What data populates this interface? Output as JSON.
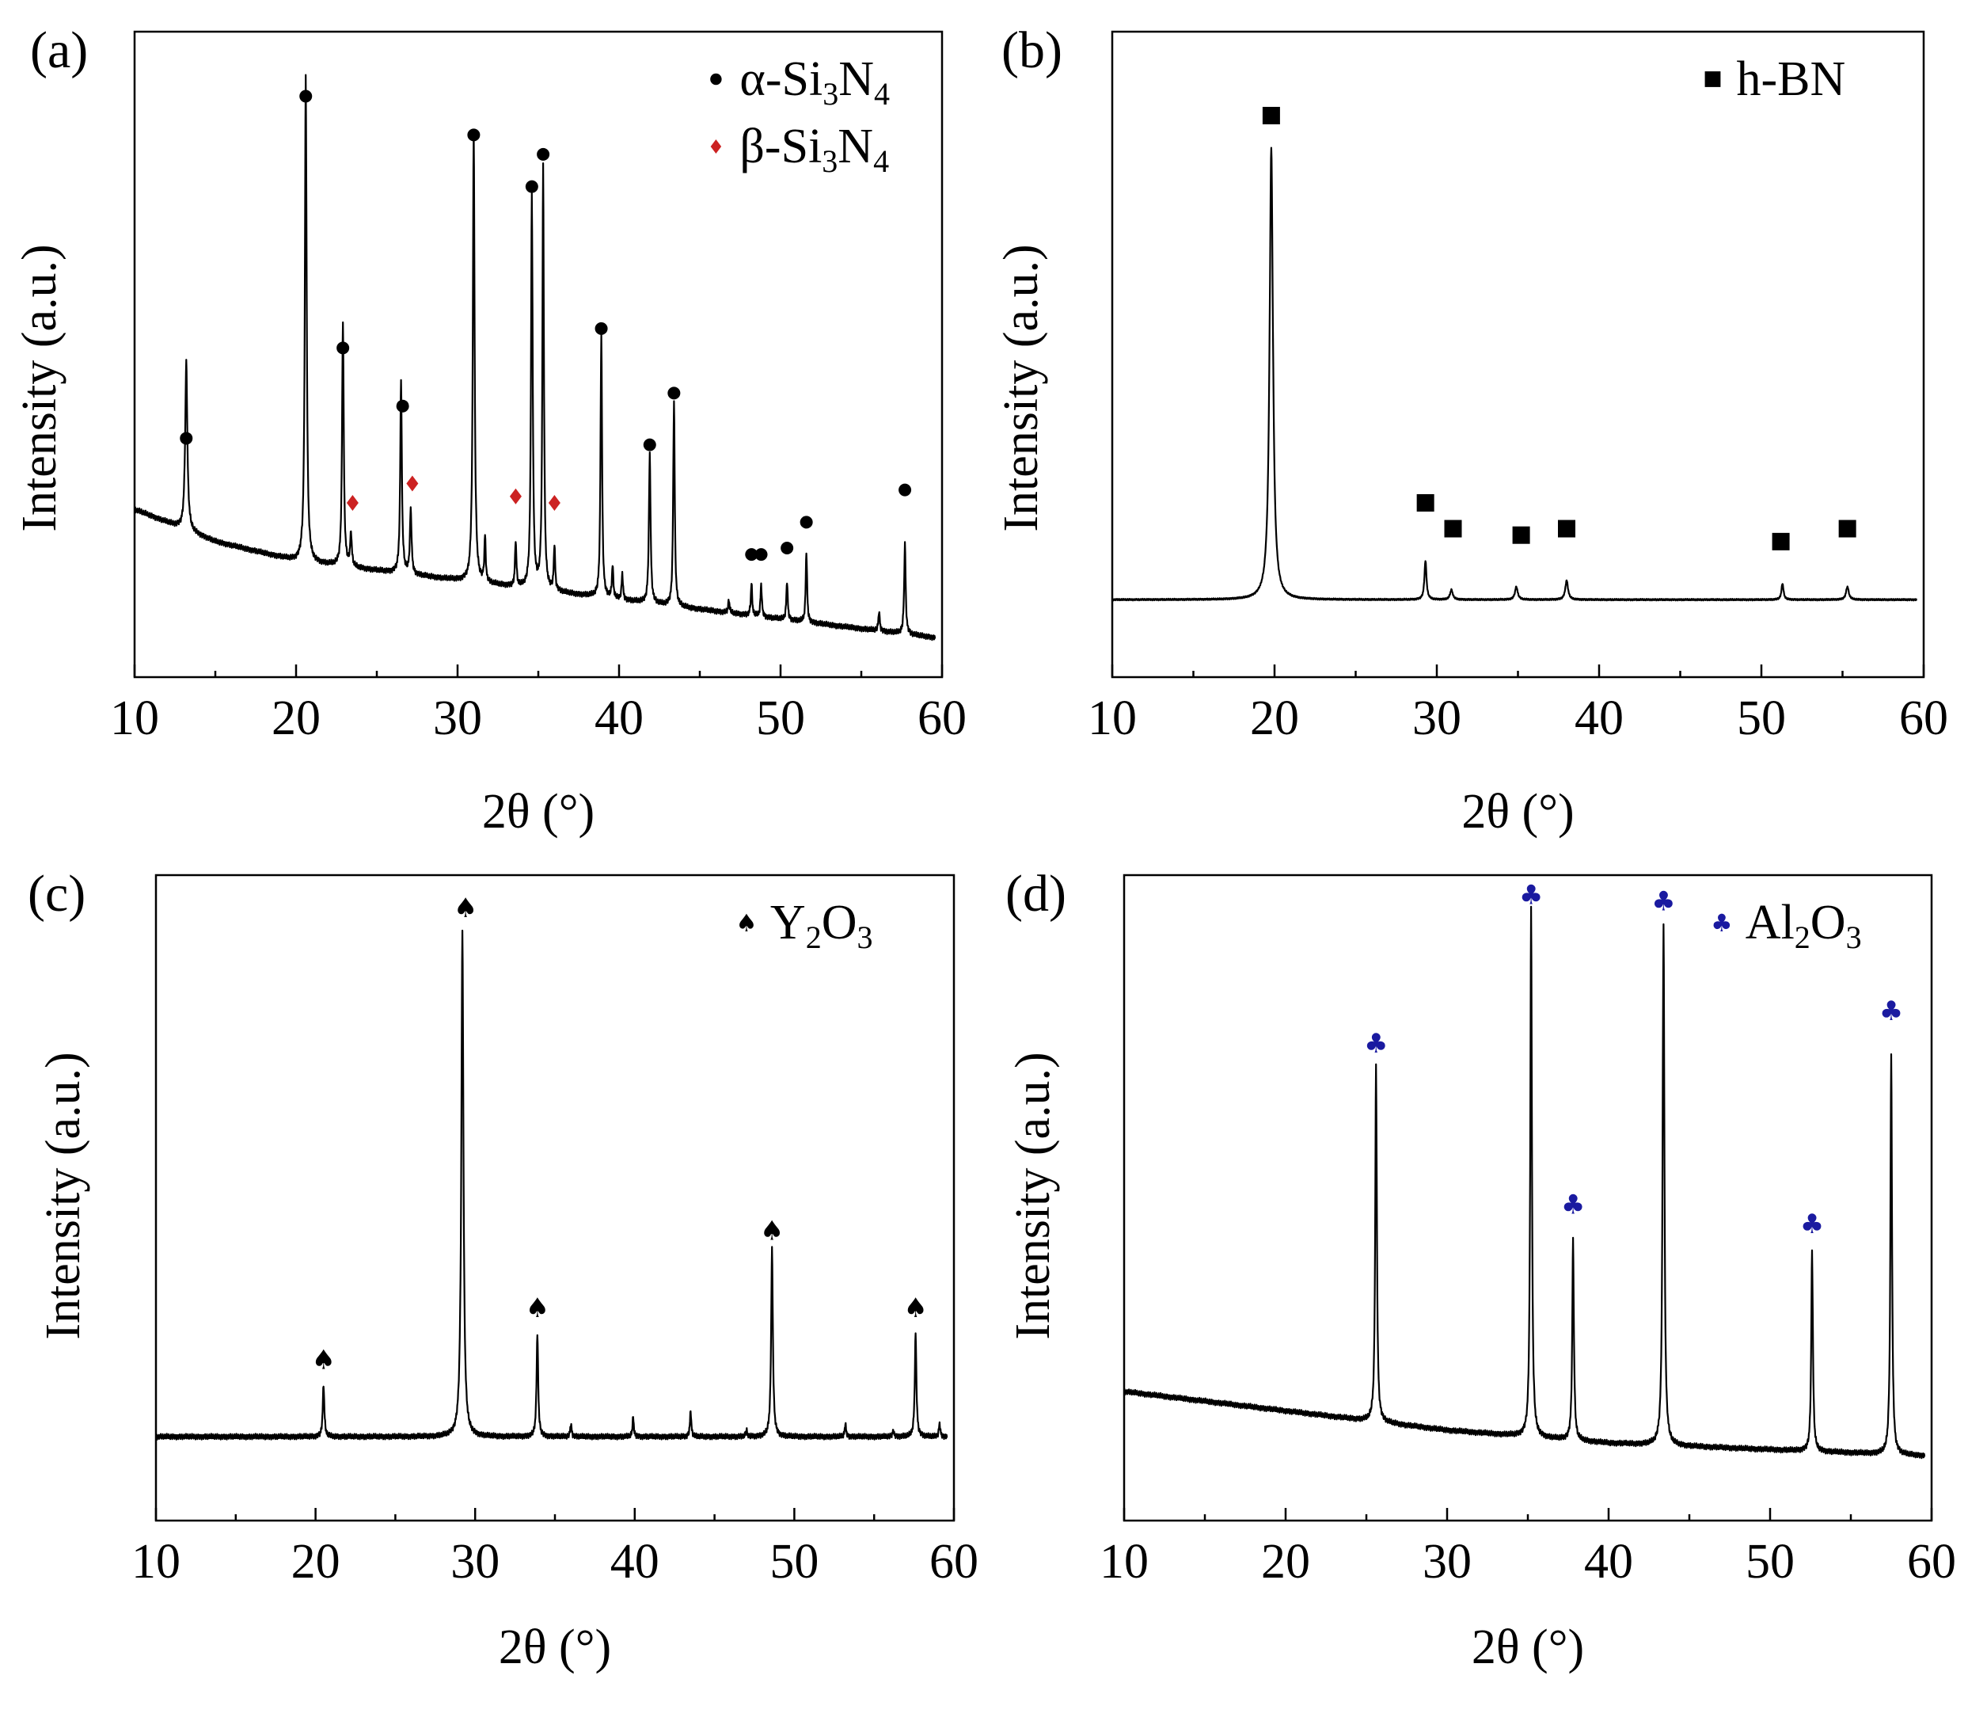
{
  "charts": [
    {
      "panel_label": "(a)",
      "type": "line",
      "xlabel": "2θ (°)",
      "ylabel": "Intensity (a.u.)",
      "xlim": [
        10,
        60
      ],
      "ylim": [
        0,
        100
      ],
      "x_ticks": [
        "10",
        "20",
        "30",
        "40",
        "50",
        "60"
      ],
      "legend_position": "top-right",
      "legend": [
        {
          "marker": "circle",
          "color": "#000000",
          "prefix": "α-Si",
          "sub1": "3",
          "mid": "N",
          "sub2": "4"
        },
        {
          "marker": "diamond",
          "color": "#cc2222",
          "prefix": "β-Si",
          "sub1": "3",
          "mid": "N",
          "sub2": "4"
        }
      ],
      "baseline": [
        [
          10,
          26
        ],
        [
          15,
          21
        ],
        [
          20,
          18
        ],
        [
          30,
          15
        ],
        [
          40,
          12
        ],
        [
          50,
          9
        ],
        [
          60,
          6
        ]
      ],
      "peaks": [
        {
          "x": 13.2,
          "h": 26,
          "w": 0.16
        },
        {
          "x": 20.6,
          "h": 75,
          "w": 0.13
        },
        {
          "x": 22.9,
          "h": 38,
          "w": 0.12
        },
        {
          "x": 23.4,
          "h": 5,
          "w": 0.12
        },
        {
          "x": 26.5,
          "h": 30,
          "w": 0.12
        },
        {
          "x": 27.1,
          "h": 10,
          "w": 0.12
        },
        {
          "x": 31.0,
          "h": 70,
          "w": 0.13
        },
        {
          "x": 31.7,
          "h": 7,
          "w": 0.1
        },
        {
          "x": 33.6,
          "h": 7,
          "w": 0.1
        },
        {
          "x": 34.6,
          "h": 61,
          "w": 0.12
        },
        {
          "x": 35.3,
          "h": 66,
          "w": 0.11
        },
        {
          "x": 36.0,
          "h": 7,
          "w": 0.1
        },
        {
          "x": 38.9,
          "h": 41,
          "w": 0.11
        },
        {
          "x": 39.6,
          "h": 5,
          "w": 0.1
        },
        {
          "x": 40.2,
          "h": 4,
          "w": 0.1
        },
        {
          "x": 41.9,
          "h": 23,
          "w": 0.12
        },
        {
          "x": 43.4,
          "h": 32,
          "w": 0.11
        },
        {
          "x": 46.8,
          "h": 2,
          "w": 0.1
        },
        {
          "x": 48.2,
          "h": 5,
          "w": 0.1
        },
        {
          "x": 48.8,
          "h": 5,
          "w": 0.1
        },
        {
          "x": 50.4,
          "h": 6,
          "w": 0.1
        },
        {
          "x": 51.6,
          "h": 11,
          "w": 0.1
        },
        {
          "x": 56.1,
          "h": 3,
          "w": 0.1
        },
        {
          "x": 57.7,
          "h": 14,
          "w": 0.11
        }
      ],
      "markers": [
        {
          "x": 13.2,
          "y": 37,
          "marker": "circle",
          "color": "#000000"
        },
        {
          "x": 20.6,
          "y": 90,
          "marker": "circle",
          "color": "#000000"
        },
        {
          "x": 22.9,
          "y": 51,
          "marker": "circle",
          "color": "#000000"
        },
        {
          "x": 23.5,
          "y": 27,
          "marker": "diamond",
          "color": "#cc2222"
        },
        {
          "x": 26.6,
          "y": 42,
          "marker": "circle",
          "color": "#000000"
        },
        {
          "x": 27.2,
          "y": 30,
          "marker": "diamond",
          "color": "#cc2222"
        },
        {
          "x": 31.0,
          "y": 84,
          "marker": "circle",
          "color": "#000000"
        },
        {
          "x": 33.6,
          "y": 28,
          "marker": "diamond",
          "color": "#cc2222"
        },
        {
          "x": 34.6,
          "y": 76,
          "marker": "circle",
          "color": "#000000"
        },
        {
          "x": 35.3,
          "y": 81,
          "marker": "circle",
          "color": "#000000"
        },
        {
          "x": 36.0,
          "y": 27,
          "marker": "diamond",
          "color": "#cc2222"
        },
        {
          "x": 38.9,
          "y": 54,
          "marker": "circle",
          "color": "#000000"
        },
        {
          "x": 41.9,
          "y": 36,
          "marker": "circle",
          "color": "#000000"
        },
        {
          "x": 43.4,
          "y": 44,
          "marker": "circle",
          "color": "#000000"
        },
        {
          "x": 48.2,
          "y": 19,
          "marker": "circle",
          "color": "#000000"
        },
        {
          "x": 48.8,
          "y": 19,
          "marker": "circle",
          "color": "#000000"
        },
        {
          "x": 50.4,
          "y": 20,
          "marker": "circle",
          "color": "#000000"
        },
        {
          "x": 51.6,
          "y": 24,
          "marker": "circle",
          "color": "#000000"
        },
        {
          "x": 57.7,
          "y": 29,
          "marker": "circle",
          "color": "#000000"
        }
      ]
    },
    {
      "panel_label": "(b)",
      "type": "line",
      "xlabel": "2θ (°)",
      "ylabel": "Intensity (a.u.)",
      "xlim": [
        10,
        60
      ],
      "ylim": [
        0,
        100
      ],
      "x_ticks": [
        "10",
        "20",
        "30",
        "40",
        "50",
        "60"
      ],
      "legend_position": "top-right",
      "legend": [
        {
          "marker": "square",
          "color": "#000000",
          "prefix": "h-BN",
          "sub1": "",
          "mid": "",
          "sub2": ""
        }
      ],
      "baseline": [
        [
          10,
          12
        ],
        [
          60,
          12
        ]
      ],
      "peaks": [
        {
          "x": 19.8,
          "h": 70,
          "w": 0.25
        },
        {
          "x": 29.3,
          "h": 6,
          "w": 0.15
        },
        {
          "x": 30.9,
          "h": 1.5,
          "w": 0.2
        },
        {
          "x": 34.9,
          "h": 2,
          "w": 0.2
        },
        {
          "x": 38.0,
          "h": 3,
          "w": 0.2
        },
        {
          "x": 51.3,
          "h": 2.5,
          "w": 0.15
        },
        {
          "x": 55.3,
          "h": 2,
          "w": 0.2
        }
      ],
      "markers": [
        {
          "x": 19.8,
          "y": 87,
          "marker": "square",
          "color": "#000000"
        },
        {
          "x": 29.3,
          "y": 27,
          "marker": "square",
          "color": "#000000"
        },
        {
          "x": 31.0,
          "y": 23,
          "marker": "square",
          "color": "#000000"
        },
        {
          "x": 35.2,
          "y": 22,
          "marker": "square",
          "color": "#000000"
        },
        {
          "x": 38.0,
          "y": 23,
          "marker": "square",
          "color": "#000000"
        },
        {
          "x": 51.2,
          "y": 21,
          "marker": "square",
          "color": "#000000"
        },
        {
          "x": 55.3,
          "y": 23,
          "marker": "square",
          "color": "#000000"
        }
      ]
    },
    {
      "panel_label": "(c)",
      "type": "line",
      "xlabel": "2θ (°)",
      "ylabel": "Intensity (a.u.)",
      "xlim": [
        10,
        60
      ],
      "ylim": [
        0,
        100
      ],
      "x_ticks": [
        "10",
        "20",
        "30",
        "40",
        "50",
        "60"
      ],
      "legend_position": "top-right",
      "legend": [
        {
          "marker": "spade",
          "color": "#000000",
          "prefix": "Y",
          "sub1": "2",
          "mid": "O",
          "sub2": "3"
        }
      ],
      "baseline": [
        [
          10,
          13
        ],
        [
          60,
          13
        ]
      ],
      "peaks": [
        {
          "x": 20.5,
          "h": 8,
          "w": 0.12
        },
        {
          "x": 29.2,
          "h": 78,
          "w": 0.16
        },
        {
          "x": 33.9,
          "h": 16,
          "w": 0.12
        },
        {
          "x": 36.0,
          "h": 2,
          "w": 0.1
        },
        {
          "x": 39.9,
          "h": 3,
          "w": 0.1
        },
        {
          "x": 43.5,
          "h": 4,
          "w": 0.1
        },
        {
          "x": 47.0,
          "h": 1,
          "w": 0.1
        },
        {
          "x": 48.6,
          "h": 29,
          "w": 0.13
        },
        {
          "x": 53.2,
          "h": 2,
          "w": 0.1
        },
        {
          "x": 56.2,
          "h": 1,
          "w": 0.1
        },
        {
          "x": 57.6,
          "h": 16,
          "w": 0.12
        },
        {
          "x": 59.1,
          "h": 2,
          "w": 0.1
        }
      ],
      "markers": [
        {
          "x": 20.5,
          "y": 25,
          "marker": "spade",
          "color": "#000000"
        },
        {
          "x": 29.4,
          "y": 95,
          "marker": "spade",
          "color": "#000000"
        },
        {
          "x": 33.9,
          "y": 33,
          "marker": "spade",
          "color": "#000000"
        },
        {
          "x": 48.6,
          "y": 45,
          "marker": "spade",
          "color": "#000000"
        },
        {
          "x": 57.6,
          "y": 33,
          "marker": "spade",
          "color": "#000000"
        }
      ]
    },
    {
      "panel_label": "(d)",
      "type": "line",
      "xlabel": "2θ (°)",
      "ylabel": "Intensity (a.u.)",
      "xlim": [
        10,
        60
      ],
      "ylim": [
        0,
        100
      ],
      "x_ticks": [
        "10",
        "20",
        "30",
        "40",
        "50",
        "60"
      ],
      "legend_position": "top-right",
      "legend": [
        {
          "marker": "club",
          "color": "#1a1aa0",
          "prefix": "Al",
          "sub1": "2",
          "mid": "O",
          "sub2": "3"
        }
      ],
      "baseline": [
        [
          10,
          20
        ],
        [
          20,
          17
        ],
        [
          30,
          14
        ],
        [
          40,
          12
        ],
        [
          50,
          11
        ],
        [
          60,
          10
        ]
      ],
      "peaks": [
        {
          "x": 25.6,
          "h": 55,
          "w": 0.12
        },
        {
          "x": 35.2,
          "h": 82,
          "w": 0.12
        },
        {
          "x": 37.8,
          "h": 31,
          "w": 0.12
        },
        {
          "x": 43.4,
          "h": 81,
          "w": 0.13
        },
        {
          "x": 52.6,
          "h": 31,
          "w": 0.12
        },
        {
          "x": 57.5,
          "h": 62,
          "w": 0.12
        }
      ],
      "markers": [
        {
          "x": 25.6,
          "y": 74,
          "marker": "club",
          "color": "#1a1aa0"
        },
        {
          "x": 35.2,
          "y": 97,
          "marker": "club",
          "color": "#1a1aa0"
        },
        {
          "x": 37.8,
          "y": 49,
          "marker": "club",
          "color": "#1a1aa0"
        },
        {
          "x": 43.4,
          "y": 96,
          "marker": "club",
          "color": "#1a1aa0"
        },
        {
          "x": 52.6,
          "y": 46,
          "marker": "club",
          "color": "#1a1aa0"
        },
        {
          "x": 57.5,
          "y": 79,
          "marker": "club",
          "color": "#1a1aa0"
        }
      ]
    }
  ]
}
